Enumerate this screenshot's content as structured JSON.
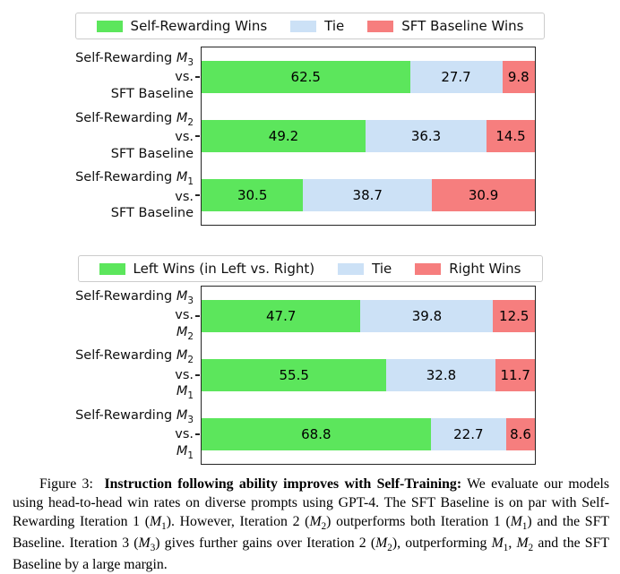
{
  "page": {
    "background": "#ffffff"
  },
  "colors": {
    "win_green": "#5ce65c",
    "tie_blue": "#cce1f6",
    "loss_red": "#f67e7e",
    "axis": "#262626",
    "legend_border": "#cccccc"
  },
  "chart_data": [
    {
      "type": "bar",
      "orientation": "horizontal",
      "stacked": true,
      "xlim": [
        0,
        100
      ],
      "grid": false,
      "legend_position": "top-center",
      "value_labels": true,
      "categories": [
        "Self-Rewarding M_3 vs. SFT Baseline",
        "Self-Rewarding M_2 vs. SFT Baseline",
        "Self-Rewarding M_1 vs. SFT Baseline"
      ],
      "category_lines": [
        [
          "Self-Rewarding M_3",
          "vs.",
          "SFT Baseline"
        ],
        [
          "Self-Rewarding M_2",
          "vs.",
          "SFT Baseline"
        ],
        [
          "Self-Rewarding M_1",
          "vs.",
          "SFT Baseline"
        ]
      ],
      "series": [
        {
          "name": "Self-Rewarding Wins",
          "role": "win",
          "color": "#5ce65c",
          "values": [
            62.5,
            49.2,
            30.5
          ]
        },
        {
          "name": "Tie",
          "role": "tie",
          "color": "#cce1f6",
          "values": [
            27.7,
            36.3,
            38.7
          ]
        },
        {
          "name": "SFT Baseline Wins",
          "role": "loss",
          "color": "#f67e7e",
          "values": [
            9.8,
            14.5,
            30.9
          ]
        }
      ]
    },
    {
      "type": "bar",
      "orientation": "horizontal",
      "stacked": true,
      "xlim": [
        0,
        100
      ],
      "grid": false,
      "legend_position": "top-center",
      "value_labels": true,
      "categories": [
        "Self-Rewarding M_3 vs. M_2",
        "Self-Rewarding M_2 vs. M_1",
        "Self-Rewarding M_3 vs. M_1"
      ],
      "category_lines": [
        [
          "Self-Rewarding M_3",
          "vs.",
          "M_2"
        ],
        [
          "Self-Rewarding M_2",
          "vs.",
          "M_1"
        ],
        [
          "Self-Rewarding M_3",
          "vs.",
          "M_1"
        ]
      ],
      "series": [
        {
          "name": "Left Wins (in Left vs. Right)",
          "role": "win",
          "color": "#5ce65c",
          "values": [
            47.7,
            55.5,
            68.8
          ]
        },
        {
          "name": "Tie",
          "role": "tie",
          "color": "#cce1f6",
          "values": [
            39.8,
            32.8,
            22.7
          ]
        },
        {
          "name": "Right Wins",
          "role": "loss",
          "color": "#f67e7e",
          "values": [
            12.5,
            11.7,
            8.6
          ]
        }
      ]
    }
  ],
  "caption": {
    "figure_label": "Figure 3:",
    "bold": "Instruction following ability improves with Self-Training:",
    "text": "We evaluate our models using head-to-head win rates on diverse prompts using GPT-4. The SFT Baseline is on par with Self-Rewarding Iteration 1 (M_1). However, Iteration 2 (M_2) outperforms both Iteration 1 (M_1) and the SFT Baseline. Iteration 3 (M_3) gives further gains over Iteration 2 (M_2), outperforming M_1, M_2 and the SFT Baseline by a large margin."
  }
}
